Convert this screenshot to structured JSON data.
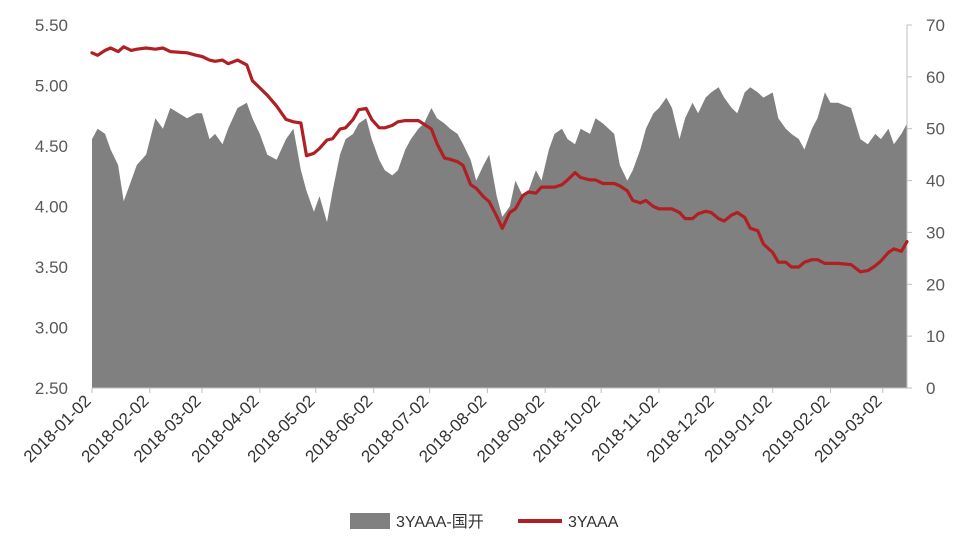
{
  "chart_data": {
    "type": "area",
    "x_type": "date",
    "x_tick_labels": [
      "2018-01-02",
      "2018-02-02",
      "2018-03-02",
      "2018-04-02",
      "2018-05-02",
      "2018-06-02",
      "2018-07-02",
      "2018-08-02",
      "2018-09-02",
      "2018-10-02",
      "2018-11-02",
      "2018-12-02",
      "2019-01-02",
      "2019-02-02",
      "2019-03-02"
    ],
    "x_range": [
      "2018-01-02",
      "2019-03-15"
    ],
    "y_left": {
      "ticks": [
        "2.50",
        "3.00",
        "3.50",
        "4.00",
        "4.50",
        "5.00",
        "5.50"
      ],
      "range": [
        2.5,
        5.5
      ]
    },
    "y_right": {
      "ticks": [
        "0",
        "10",
        "20",
        "30",
        "40",
        "50",
        "60",
        "70"
      ],
      "range": [
        0,
        70
      ]
    },
    "grid": false,
    "legend_position": "bottom",
    "series": [
      {
        "name": "3YAAA-国开",
        "type": "area",
        "axis": "right",
        "color": "#808080",
        "points": [
          [
            "2018-01-02",
            48
          ],
          [
            "2018-01-05",
            50
          ],
          [
            "2018-01-09",
            49
          ],
          [
            "2018-01-12",
            46
          ],
          [
            "2018-01-16",
            43
          ],
          [
            "2018-01-19",
            36
          ],
          [
            "2018-01-23",
            40
          ],
          [
            "2018-01-26",
            43
          ],
          [
            "2018-01-31",
            45
          ],
          [
            "2018-02-05",
            52
          ],
          [
            "2018-02-09",
            50
          ],
          [
            "2018-02-13",
            54
          ],
          [
            "2018-02-22",
            52
          ],
          [
            "2018-02-27",
            53
          ],
          [
            "2018-03-02",
            53
          ],
          [
            "2018-03-06",
            48
          ],
          [
            "2018-03-09",
            49
          ],
          [
            "2018-03-13",
            47
          ],
          [
            "2018-03-16",
            50
          ],
          [
            "2018-03-21",
            54
          ],
          [
            "2018-03-26",
            55
          ],
          [
            "2018-03-29",
            52
          ],
          [
            "2018-04-02",
            49
          ],
          [
            "2018-04-06",
            45
          ],
          [
            "2018-04-11",
            44
          ],
          [
            "2018-04-16",
            48
          ],
          [
            "2018-04-20",
            50
          ],
          [
            "2018-04-24",
            42
          ],
          [
            "2018-04-27",
            38
          ],
          [
            "2018-05-01",
            34
          ],
          [
            "2018-05-04",
            37
          ],
          [
            "2018-05-08",
            32
          ],
          [
            "2018-05-11",
            38
          ],
          [
            "2018-05-15",
            45
          ],
          [
            "2018-05-18",
            48
          ],
          [
            "2018-05-22",
            49
          ],
          [
            "2018-05-25",
            51
          ],
          [
            "2018-05-29",
            52
          ],
          [
            "2018-06-01",
            48
          ],
          [
            "2018-06-05",
            44
          ],
          [
            "2018-06-08",
            42
          ],
          [
            "2018-06-12",
            41
          ],
          [
            "2018-06-15",
            42
          ],
          [
            "2018-06-19",
            46
          ],
          [
            "2018-06-22",
            48
          ],
          [
            "2018-06-26",
            50
          ],
          [
            "2018-06-29",
            51
          ],
          [
            "2018-07-03",
            54
          ],
          [
            "2018-07-06",
            52
          ],
          [
            "2018-07-10",
            51
          ],
          [
            "2018-07-13",
            50
          ],
          [
            "2018-07-17",
            49
          ],
          [
            "2018-07-20",
            47
          ],
          [
            "2018-07-24",
            44
          ],
          [
            "2018-07-27",
            40
          ],
          [
            "2018-07-31",
            43
          ],
          [
            "2018-08-03",
            45
          ],
          [
            "2018-08-07",
            37
          ],
          [
            "2018-08-10",
            33
          ],
          [
            "2018-08-14",
            35
          ],
          [
            "2018-08-17",
            40
          ],
          [
            "2018-08-21",
            37
          ],
          [
            "2018-08-24",
            38
          ],
          [
            "2018-08-28",
            42
          ],
          [
            "2018-08-31",
            40
          ],
          [
            "2018-09-04",
            46
          ],
          [
            "2018-09-07",
            49
          ],
          [
            "2018-09-11",
            50
          ],
          [
            "2018-09-14",
            48
          ],
          [
            "2018-09-18",
            47
          ],
          [
            "2018-09-21",
            50
          ],
          [
            "2018-09-26",
            49
          ],
          [
            "2018-09-29",
            52
          ],
          [
            "2018-10-03",
            51
          ],
          [
            "2018-10-09",
            49
          ],
          [
            "2018-10-12",
            43
          ],
          [
            "2018-10-16",
            40
          ],
          [
            "2018-10-19",
            42
          ],
          [
            "2018-10-23",
            46
          ],
          [
            "2018-10-26",
            50
          ],
          [
            "2018-10-30",
            53
          ],
          [
            "2018-11-02",
            54
          ],
          [
            "2018-11-06",
            56
          ],
          [
            "2018-11-09",
            54
          ],
          [
            "2018-11-13",
            48
          ],
          [
            "2018-11-16",
            52
          ],
          [
            "2018-11-20",
            55
          ],
          [
            "2018-11-23",
            53
          ],
          [
            "2018-11-27",
            56
          ],
          [
            "2018-11-30",
            57
          ],
          [
            "2018-12-04",
            58
          ],
          [
            "2018-12-07",
            56
          ],
          [
            "2018-12-11",
            54
          ],
          [
            "2018-12-14",
            53
          ],
          [
            "2018-12-18",
            57
          ],
          [
            "2018-12-21",
            58
          ],
          [
            "2018-12-25",
            57
          ],
          [
            "2018-12-28",
            56
          ],
          [
            "2019-01-02",
            57
          ],
          [
            "2019-01-05",
            52
          ],
          [
            "2019-01-09",
            50
          ],
          [
            "2019-01-12",
            49
          ],
          [
            "2019-01-16",
            48
          ],
          [
            "2019-01-19",
            46
          ],
          [
            "2019-01-23",
            50
          ],
          [
            "2019-01-26",
            52
          ],
          [
            "2019-01-30",
            57
          ],
          [
            "2019-02-02",
            55
          ],
          [
            "2019-02-06",
            55
          ],
          [
            "2019-02-13",
            54
          ],
          [
            "2019-02-18",
            48
          ],
          [
            "2019-02-22",
            47
          ],
          [
            "2019-02-26",
            49
          ],
          [
            "2019-03-01",
            48
          ],
          [
            "2019-03-05",
            50
          ],
          [
            "2019-03-08",
            47
          ],
          [
            "2019-03-12",
            49
          ],
          [
            "2019-03-15",
            51
          ]
        ]
      },
      {
        "name": "3YAAA",
        "type": "line",
        "axis": "left",
        "color": "#B01F24",
        "points": [
          [
            "2018-01-02",
            5.27
          ],
          [
            "2018-01-05",
            5.25
          ],
          [
            "2018-01-09",
            5.29
          ],
          [
            "2018-01-12",
            5.31
          ],
          [
            "2018-01-16",
            5.28
          ],
          [
            "2018-01-19",
            5.32
          ],
          [
            "2018-01-23",
            5.29
          ],
          [
            "2018-01-26",
            5.3
          ],
          [
            "2018-01-31",
            5.31
          ],
          [
            "2018-02-05",
            5.3
          ],
          [
            "2018-02-09",
            5.31
          ],
          [
            "2018-02-13",
            5.28
          ],
          [
            "2018-02-22",
            5.27
          ],
          [
            "2018-02-27",
            5.25
          ],
          [
            "2018-03-02",
            5.24
          ],
          [
            "2018-03-06",
            5.21
          ],
          [
            "2018-03-09",
            5.2
          ],
          [
            "2018-03-13",
            5.21
          ],
          [
            "2018-03-16",
            5.18
          ],
          [
            "2018-03-21",
            5.21
          ],
          [
            "2018-03-26",
            5.17
          ],
          [
            "2018-03-29",
            5.04
          ],
          [
            "2018-04-02",
            4.98
          ],
          [
            "2018-04-06",
            4.92
          ],
          [
            "2018-04-11",
            4.83
          ],
          [
            "2018-04-16",
            4.72
          ],
          [
            "2018-04-20",
            4.7
          ],
          [
            "2018-04-24",
            4.69
          ],
          [
            "2018-04-27",
            4.42
          ],
          [
            "2018-05-01",
            4.44
          ],
          [
            "2018-05-04",
            4.48
          ],
          [
            "2018-05-08",
            4.55
          ],
          [
            "2018-05-11",
            4.56
          ],
          [
            "2018-05-15",
            4.64
          ],
          [
            "2018-05-18",
            4.65
          ],
          [
            "2018-05-22",
            4.72
          ],
          [
            "2018-05-25",
            4.8
          ],
          [
            "2018-05-29",
            4.81
          ],
          [
            "2018-06-01",
            4.72
          ],
          [
            "2018-06-05",
            4.65
          ],
          [
            "2018-06-08",
            4.65
          ],
          [
            "2018-06-12",
            4.67
          ],
          [
            "2018-06-15",
            4.7
          ],
          [
            "2018-06-19",
            4.71
          ],
          [
            "2018-06-22",
            4.71
          ],
          [
            "2018-06-26",
            4.71
          ],
          [
            "2018-06-29",
            4.68
          ],
          [
            "2018-07-03",
            4.64
          ],
          [
            "2018-07-06",
            4.52
          ],
          [
            "2018-07-10",
            4.4
          ],
          [
            "2018-07-13",
            4.39
          ],
          [
            "2018-07-17",
            4.37
          ],
          [
            "2018-07-20",
            4.34
          ],
          [
            "2018-07-24",
            4.18
          ],
          [
            "2018-07-27",
            4.15
          ],
          [
            "2018-07-31",
            4.08
          ],
          [
            "2018-08-03",
            4.04
          ],
          [
            "2018-08-07",
            3.92
          ],
          [
            "2018-08-10",
            3.82
          ],
          [
            "2018-08-14",
            3.95
          ],
          [
            "2018-08-17",
            3.98
          ],
          [
            "2018-08-21",
            4.09
          ],
          [
            "2018-08-24",
            4.12
          ],
          [
            "2018-08-28",
            4.11
          ],
          [
            "2018-08-31",
            4.16
          ],
          [
            "2018-09-04",
            4.16
          ],
          [
            "2018-09-07",
            4.16
          ],
          [
            "2018-09-11",
            4.18
          ],
          [
            "2018-09-14",
            4.22
          ],
          [
            "2018-09-18",
            4.28
          ],
          [
            "2018-09-21",
            4.24
          ],
          [
            "2018-09-26",
            4.22
          ],
          [
            "2018-09-29",
            4.22
          ],
          [
            "2018-10-03",
            4.19
          ],
          [
            "2018-10-09",
            4.19
          ],
          [
            "2018-10-12",
            4.17
          ],
          [
            "2018-10-16",
            4.13
          ],
          [
            "2018-10-19",
            4.05
          ],
          [
            "2018-10-23",
            4.03
          ],
          [
            "2018-10-26",
            4.05
          ],
          [
            "2018-10-30",
            4.0
          ],
          [
            "2018-11-02",
            3.98
          ],
          [
            "2018-11-06",
            3.98
          ],
          [
            "2018-11-09",
            3.98
          ],
          [
            "2018-11-13",
            3.95
          ],
          [
            "2018-11-16",
            3.9
          ],
          [
            "2018-11-20",
            3.9
          ],
          [
            "2018-11-23",
            3.94
          ],
          [
            "2018-11-27",
            3.96
          ],
          [
            "2018-11-30",
            3.95
          ],
          [
            "2018-12-04",
            3.9
          ],
          [
            "2018-12-07",
            3.88
          ],
          [
            "2018-12-11",
            3.93
          ],
          [
            "2018-12-14",
            3.95
          ],
          [
            "2018-12-18",
            3.91
          ],
          [
            "2018-12-21",
            3.82
          ],
          [
            "2018-12-25",
            3.8
          ],
          [
            "2018-12-28",
            3.69
          ],
          [
            "2019-01-02",
            3.62
          ],
          [
            "2019-01-05",
            3.54
          ],
          [
            "2019-01-09",
            3.54
          ],
          [
            "2019-01-12",
            3.5
          ],
          [
            "2019-01-16",
            3.5
          ],
          [
            "2019-01-19",
            3.54
          ],
          [
            "2019-01-23",
            3.56
          ],
          [
            "2019-01-26",
            3.56
          ],
          [
            "2019-01-30",
            3.53
          ],
          [
            "2019-02-02",
            3.53
          ],
          [
            "2019-02-06",
            3.53
          ],
          [
            "2019-02-13",
            3.52
          ],
          [
            "2019-02-18",
            3.46
          ],
          [
            "2019-02-22",
            3.47
          ],
          [
            "2019-02-26",
            3.51
          ],
          [
            "2019-03-01",
            3.55
          ],
          [
            "2019-03-05",
            3.62
          ],
          [
            "2019-03-08",
            3.65
          ],
          [
            "2019-03-12",
            3.63
          ],
          [
            "2019-03-15",
            3.71
          ]
        ]
      }
    ]
  }
}
